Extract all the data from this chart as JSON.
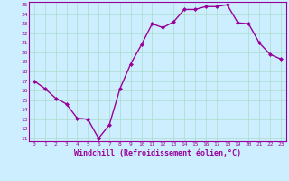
{
  "x": [
    0,
    1,
    2,
    3,
    4,
    5,
    6,
    7,
    8,
    9,
    10,
    11,
    12,
    13,
    14,
    15,
    16,
    17,
    18,
    19,
    20,
    21,
    22,
    23
  ],
  "y": [
    17.0,
    16.2,
    15.2,
    14.6,
    13.1,
    13.0,
    11.0,
    12.4,
    16.2,
    18.8,
    20.8,
    23.0,
    22.6,
    23.2,
    24.5,
    24.5,
    24.8,
    24.8,
    25.0,
    23.1,
    23.0,
    21.0,
    19.8,
    19.3
  ],
  "line_color": "#990099",
  "marker": "D",
  "marker_size": 2.0,
  "linewidth": 1.0,
  "xlabel": "Windchill (Refroidissement éolien,°C)",
  "xlabel_fontsize": 6.0,
  "bg_color": "#cceeff",
  "grid_color": "#aaddcc",
  "tick_color": "#990099",
  "label_color": "#990099",
  "ylim": [
    11,
    25
  ],
  "xlim": [
    -0.5,
    23.5
  ],
  "yticks": [
    11,
    12,
    13,
    14,
    15,
    16,
    17,
    18,
    19,
    20,
    21,
    22,
    23,
    24,
    25
  ],
  "xticks": [
    0,
    1,
    2,
    3,
    4,
    5,
    6,
    7,
    8,
    9,
    10,
    11,
    12,
    13,
    14,
    15,
    16,
    17,
    18,
    19,
    20,
    21,
    22,
    23
  ]
}
